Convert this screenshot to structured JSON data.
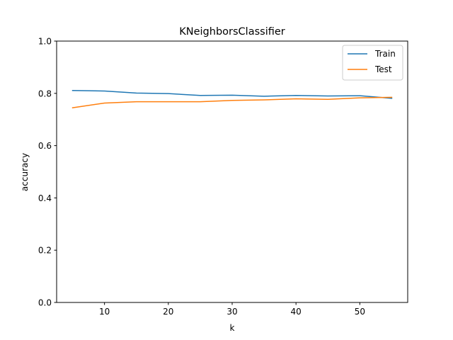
{
  "chart_data": {
    "type": "line",
    "title": "KNeighborsClassifier",
    "xlabel": "k",
    "ylabel": "accuracy",
    "xlim": [
      2.5,
      57.5
    ],
    "ylim": [
      0.0,
      1.0
    ],
    "x_ticks": [
      10,
      20,
      30,
      40,
      50
    ],
    "y_ticks": [
      0.0,
      0.2,
      0.4,
      0.6,
      0.8,
      1.0
    ],
    "x_tick_labels": [
      "10",
      "20",
      "30",
      "40",
      "50"
    ],
    "y_tick_labels": [
      "0.0",
      "0.2",
      "0.4",
      "0.6",
      "0.8",
      "1.0"
    ],
    "grid": false,
    "legend_position": "top-right",
    "x": [
      5,
      10,
      15,
      20,
      25,
      30,
      35,
      40,
      45,
      50,
      55
    ],
    "series": [
      {
        "name": "Train",
        "color": "#1f77b4",
        "values": [
          0.811,
          0.809,
          0.801,
          0.799,
          0.792,
          0.793,
          0.789,
          0.792,
          0.79,
          0.791,
          0.781
        ]
      },
      {
        "name": "Test",
        "color": "#ff7f0e",
        "values": [
          0.745,
          0.763,
          0.768,
          0.768,
          0.768,
          0.773,
          0.775,
          0.779,
          0.777,
          0.783,
          0.785
        ]
      }
    ]
  }
}
